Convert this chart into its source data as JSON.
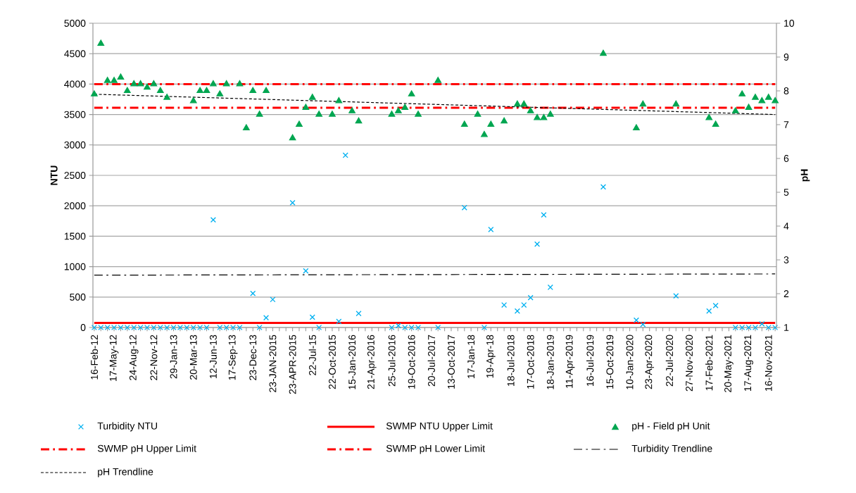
{
  "chart_data": {
    "type": "scatter",
    "ylabel": "NTU",
    "y2label": "pH",
    "categories": [
      "16-Feb-12",
      null,
      null,
      "17-May-12",
      null,
      null,
      "24-Aug-12",
      null,
      null,
      "22-Nov-12",
      null,
      null,
      "29-Jan-13",
      null,
      null,
      "20-Mar-13",
      null,
      null,
      "12-Jun-13",
      null,
      null,
      "17-Sep-13",
      null,
      null,
      "23-Dec-13",
      null,
      null,
      "23-JAN-2015",
      null,
      null,
      "23-APR-2015",
      null,
      null,
      "22-Jul-15",
      null,
      null,
      "22-Oct-2015",
      null,
      null,
      "15-Jan-2016",
      null,
      null,
      "21-Apr-2016",
      null,
      null,
      "25-Jul-2016",
      null,
      null,
      "19-Oct-2016",
      null,
      null,
      "20-Jul-2017",
      null,
      null,
      "13-Oct-2017",
      null,
      null,
      "17-Jan-18",
      null,
      null,
      "19-Apr-18",
      null,
      null,
      "18-Jul-2018",
      null,
      null,
      "17-Oct-2018",
      null,
      null,
      "18-Jan-2019",
      null,
      null,
      "11-Apr-2019",
      null,
      null,
      "16-Jul-2019",
      null,
      null,
      "15-Oct-2019",
      null,
      null,
      "10-Jan-2020",
      null,
      null,
      "23-Apr-2020",
      null,
      null,
      "22-Jul-2020",
      null,
      null,
      "27-Nov-2020",
      null,
      null,
      "17-Feb-2021",
      null,
      null,
      "20-May-2021",
      null,
      null,
      "17-Aug-2021",
      null,
      null,
      "16-Nov-2021",
      null
    ],
    "series": [
      {
        "name": "Turbidity NTU",
        "color": "#00b0f0",
        "marker": "cross",
        "values": [
          0,
          0,
          0,
          0,
          0,
          0,
          0,
          0,
          0,
          0,
          0,
          0,
          0,
          0,
          0,
          0,
          0,
          0,
          1770,
          0,
          0,
          0,
          0,
          null,
          560,
          0,
          160,
          460,
          null,
          null,
          2050,
          null,
          930,
          170,
          0,
          null,
          null,
          100,
          2830,
          null,
          230,
          null,
          null,
          null,
          null,
          0,
          30,
          0,
          0,
          0,
          null,
          null,
          0,
          null,
          null,
          null,
          1970,
          null,
          null,
          0,
          1610,
          null,
          370,
          null,
          270,
          370,
          490,
          1370,
          1850,
          660,
          null,
          null,
          null,
          null,
          null,
          null,
          null,
          2310,
          null,
          null,
          null,
          null,
          120,
          50,
          null,
          null,
          null,
          null,
          520,
          null,
          null,
          null,
          null,
          270,
          360,
          null,
          null,
          0,
          0,
          0,
          0,
          60,
          0,
          0
        ]
      },
      {
        "name": "pH - Field pH Unit",
        "axis": "y2",
        "color": "#00a651",
        "marker": "triangle",
        "values": [
          7.9,
          9.4,
          8.3,
          8.3,
          8.4,
          8.0,
          8.2,
          8.2,
          8.1,
          8.2,
          8.0,
          7.8,
          null,
          null,
          null,
          7.7,
          8.0,
          8.0,
          8.2,
          7.9,
          8.2,
          null,
          8.2,
          6.9,
          8.0,
          7.3,
          8.0,
          null,
          null,
          null,
          6.6,
          7.0,
          7.5,
          7.8,
          7.3,
          null,
          7.3,
          7.7,
          null,
          7.4,
          7.1,
          null,
          null,
          null,
          null,
          7.3,
          7.4,
          7.5,
          7.9,
          7.3,
          null,
          null,
          8.3,
          null,
          null,
          null,
          7.0,
          null,
          7.3,
          6.7,
          7.0,
          null,
          7.1,
          null,
          7.6,
          7.6,
          7.4,
          7.2,
          7.2,
          7.3,
          null,
          null,
          null,
          null,
          null,
          null,
          null,
          9.1,
          null,
          null,
          null,
          null,
          6.9,
          7.6,
          null,
          null,
          null,
          null,
          7.6,
          null,
          null,
          null,
          null,
          7.2,
          7.0,
          null,
          null,
          7.4,
          7.9,
          7.5,
          7.8,
          7.7,
          7.8,
          7.7
        ]
      },
      {
        "name": "Turbidity Trendline",
        "type": "line",
        "color": "#000000",
        "line_style": "dashdot",
        "values": [
          860,
          null,
          null,
          null,
          null,
          null,
          null,
          null,
          null,
          null,
          null,
          null,
          null,
          null,
          null,
          null,
          null,
          null,
          null,
          null,
          null,
          null,
          null,
          null,
          null,
          null,
          null,
          null,
          null,
          null,
          null,
          null,
          null,
          null,
          null,
          null,
          null,
          null,
          null,
          null,
          null,
          null,
          null,
          null,
          null,
          null,
          null,
          null,
          null,
          null,
          null,
          null,
          null,
          null,
          null,
          null,
          null,
          null,
          null,
          null,
          null,
          null,
          null,
          null,
          null,
          null,
          null,
          null,
          null,
          null,
          null,
          null,
          null,
          null,
          null,
          null,
          null,
          null,
          null,
          null,
          null,
          null,
          null,
          null,
          null,
          null,
          null,
          null,
          null,
          null,
          null,
          null,
          null,
          null,
          null,
          null,
          null,
          null,
          null,
          null,
          null,
          null,
          null,
          880
        ]
      },
      {
        "name": "pH Trendline",
        "type": "line",
        "axis": "y2",
        "color": "#000000",
        "line_style": "dashed",
        "values": [
          7.9,
          null,
          null,
          null,
          null,
          null,
          null,
          null,
          null,
          null,
          null,
          null,
          null,
          null,
          null,
          null,
          null,
          null,
          null,
          null,
          null,
          null,
          null,
          null,
          null,
          null,
          null,
          null,
          null,
          null,
          null,
          null,
          null,
          null,
          null,
          null,
          null,
          null,
          null,
          null,
          null,
          null,
          null,
          null,
          null,
          null,
          null,
          null,
          null,
          null,
          null,
          null,
          null,
          null,
          null,
          null,
          null,
          null,
          null,
          null,
          null,
          null,
          null,
          null,
          null,
          null,
          null,
          null,
          null,
          null,
          null,
          null,
          null,
          null,
          null,
          null,
          null,
          null,
          null,
          null,
          null,
          null,
          null,
          null,
          null,
          null,
          null,
          null,
          null,
          null,
          null,
          null,
          null,
          null,
          null,
          null,
          null,
          null,
          null,
          null,
          null,
          null,
          null,
          7.3
        ]
      }
    ],
    "ref_lines": [
      {
        "axis": "y",
        "value": 75,
        "label": "SWMP NTU Upper Limit",
        "color": "#ff0000",
        "line_style": "solid"
      },
      {
        "axis": "y2",
        "value": 8.2,
        "label": "SWMP pH Upper Limit",
        "color": "#ff0000",
        "line_style": "dashdot"
      },
      {
        "axis": "y2",
        "value": 7.5,
        "label": "SWMP pH Lower Limit",
        "color": "#ff0000",
        "line_style": "dashdot"
      }
    ],
    "ylim": [
      0,
      5000
    ],
    "yticks": [
      0,
      500,
      1000,
      1500,
      2000,
      2500,
      3000,
      3500,
      4000,
      4500,
      5000
    ],
    "y2lim": [
      1,
      10
    ],
    "y2ticks": [
      1,
      2,
      3,
      4,
      5,
      6,
      7,
      8,
      9,
      10
    ],
    "grid": "y",
    "legend": "bottom"
  }
}
